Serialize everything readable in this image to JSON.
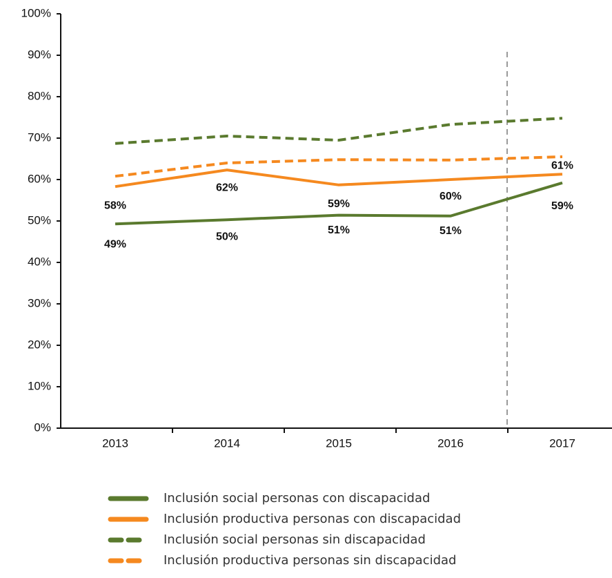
{
  "chart_data": {
    "type": "line",
    "categories": [
      "2013",
      "2014",
      "2015",
      "2016",
      "2017"
    ],
    "ylim": [
      0,
      100
    ],
    "yticks": [
      {
        "value": 0,
        "label": "0%"
      },
      {
        "value": 10,
        "label": "10%"
      },
      {
        "value": 20,
        "label": "20%"
      },
      {
        "value": 30,
        "label": "30%"
      },
      {
        "value": 40,
        "label": "40%"
      },
      {
        "value": 50,
        "label": "50%"
      },
      {
        "value": 60,
        "label": "60%"
      },
      {
        "value": 70,
        "label": "70%"
      },
      {
        "value": 80,
        "label": "80%"
      },
      {
        "value": 90,
        "label": "90%"
      },
      {
        "value": 100,
        "label": "100%"
      }
    ],
    "grid": false,
    "legend": "bottom",
    "series": [
      {
        "name": "Inclusión social personas con discapacidad",
        "color": "#5a7a2e",
        "dash": false,
        "values": [
          49.3,
          50.3,
          51.4,
          51.2,
          59.2
        ],
        "value_labels": [
          "49%",
          "50%",
          "51%",
          "51%",
          "59%"
        ]
      },
      {
        "name": "Inclusión productiva personas con discapacidad",
        "color": "#f5891f",
        "dash": false,
        "values": [
          58.3,
          62.3,
          58.7,
          60,
          61.3
        ],
        "value_labels": [
          "58%",
          "62%",
          "59%",
          "60%",
          "61%"
        ]
      },
      {
        "name": "Inclusión social personas sin discapacidad",
        "color": "#5a7a2e",
        "dash": true,
        "values": [
          68.7,
          70.5,
          69.5,
          73.3,
          74.8
        ]
      },
      {
        "name": "Inclusión productiva personas sin discapacidad",
        "color": "#f5891f",
        "dash": true,
        "values": [
          60.8,
          64,
          64.8,
          64.7,
          65.5
        ]
      }
    ]
  }
}
